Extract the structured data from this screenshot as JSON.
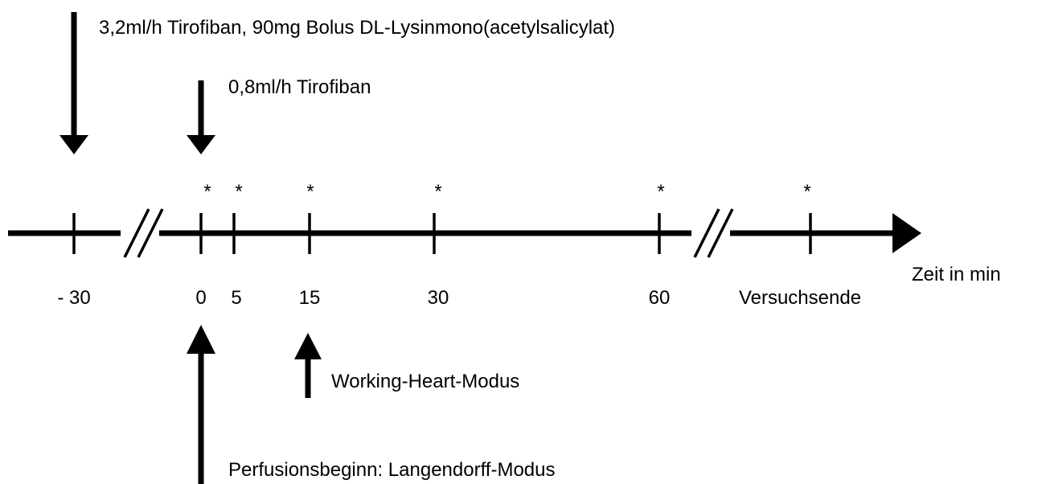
{
  "timeline": {
    "axis_label": "Zeit in min",
    "ticks": [
      "- 30",
      "0",
      "5",
      "15",
      "30",
      "60",
      "Versuchsende"
    ],
    "markers": [
      "*",
      "*",
      "*",
      "*",
      "*",
      "*"
    ]
  },
  "annotations": [
    "3,2ml/h Tirofiban, 90mg Bolus DL-Lysinmono(acetylsalicylat)",
    "0,8ml/h Tirofiban",
    "Working-Heart-Modus",
    "Perfusionsbeginn: Langendorff-Modus"
  ]
}
